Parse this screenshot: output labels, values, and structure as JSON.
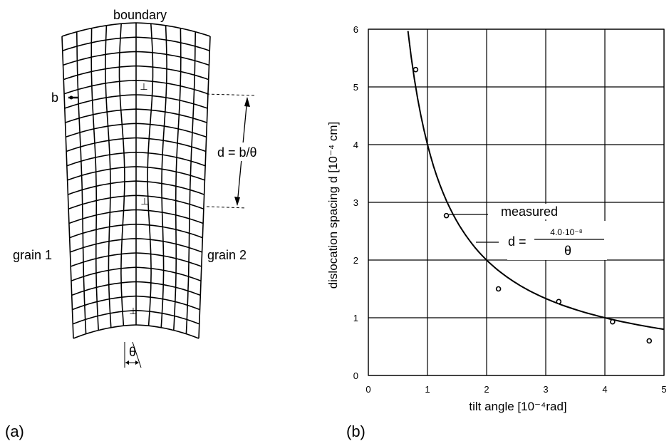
{
  "panel_a": {
    "panel_label": "(a)",
    "boundary_label": "boundary",
    "burgers_label": "b",
    "spacing_label": "d = b/θ",
    "grain1_label": "grain 1",
    "grain2_label": "grain 2",
    "theta_label": "θ",
    "dislocation_symbol": "⊥"
  },
  "panel_b": {
    "panel_label": "(b)"
  },
  "chart_data": {
    "type": "scatter",
    "xlabel": "tilt angle [10⁻⁴rad]",
    "ylabel": "dislocation spacing d [10⁻⁴ cm]",
    "xlim": [
      0,
      5
    ],
    "ylim": [
      0,
      6
    ],
    "xticks": [
      "0",
      "1",
      "2",
      "3",
      "4",
      "5"
    ],
    "yticks": [
      "0",
      "1",
      "2",
      "3",
      "4",
      "5",
      "6"
    ],
    "grid": true,
    "series": [
      {
        "name": "measured",
        "kind": "points",
        "x": [
          0.8,
          1.32,
          2.2,
          3.22,
          4.13,
          4.75
        ],
        "y": [
          5.3,
          2.77,
          1.5,
          1.28,
          0.93,
          0.6
        ]
      },
      {
        "kind": "curve",
        "formula": "d = 4.0/θ",
        "coefficient": 4.0,
        "x_range": [
          0.67,
          5.0
        ]
      }
    ],
    "annotations": {
      "measured_label": "measured",
      "equation_lhs": "d =",
      "equation_numerator": "4.0·10⁻⁸",
      "equation_denominator": "θ"
    }
  }
}
